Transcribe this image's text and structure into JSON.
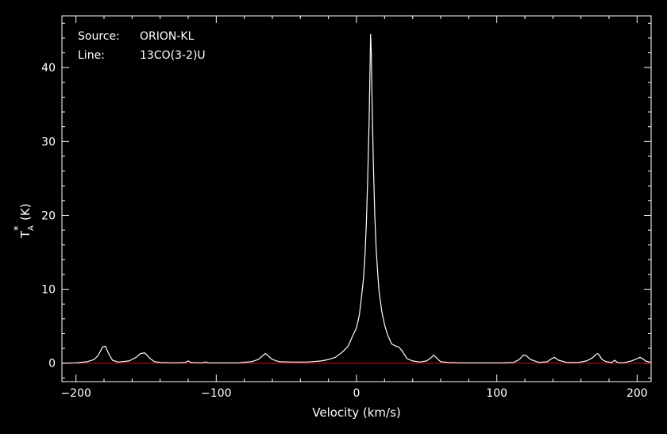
{
  "colors": {
    "background": "#000000",
    "foreground": "#ffffff",
    "baseline": "#d01010"
  },
  "annotations": {
    "source_label": "Source:",
    "source_value": "ORION-KL",
    "line_label": "Line:",
    "line_value": "13CO(3-2)U"
  },
  "chart_data": {
    "type": "line",
    "title": "",
    "xlabel": "Velocity (km/s)",
    "ylabel_main": "T",
    "ylabel_sub": "A",
    "ylabel_sup": "*",
    "ylabel_unit": "(K)",
    "xlim": [
      -210,
      210
    ],
    "ylim": [
      -2.5,
      47
    ],
    "xticks": [
      -200,
      -100,
      0,
      100,
      200
    ],
    "xtick_labels": [
      "−200",
      "−100",
      "0",
      "100",
      "200"
    ],
    "yticks": [
      0,
      10,
      20,
      30,
      40
    ],
    "ytick_labels": [
      "0",
      "10",
      "20",
      "30",
      "40"
    ],
    "x_minor_step": 20,
    "y_minor_step": 2,
    "grid": false,
    "baseline": 0,
    "series": [
      {
        "x": [
          -210,
          -200,
          -192,
          -187,
          -184,
          -181,
          -179,
          -177,
          -174,
          -170,
          -162,
          -157,
          -154,
          -151,
          -149,
          -147,
          -144,
          -140,
          -130,
          -122,
          -120,
          -118,
          -110,
          -108,
          -105,
          -95,
          -85,
          -75,
          -70,
          -67,
          -65,
          -63,
          -60,
          -55,
          -45,
          -35,
          -25,
          -20,
          -15,
          -10,
          -6,
          -3,
          0,
          2,
          3,
          5,
          6,
          7,
          8,
          9,
          9.5,
          10,
          10.5,
          11,
          12,
          13,
          14,
          15,
          16,
          18,
          20,
          22,
          25,
          28,
          30,
          32,
          34,
          36,
          40,
          45,
          50,
          53,
          55,
          57,
          60,
          65,
          75,
          85,
          95,
          105,
          112,
          116,
          119,
          121,
          124,
          130,
          136,
          139,
          141,
          144,
          150,
          158,
          164,
          168,
          171,
          172,
          173,
          175,
          178,
          182,
          184,
          186,
          190,
          196,
          200,
          202,
          204,
          206,
          210
        ],
        "y": [
          0.0,
          0.05,
          0.2,
          0.5,
          1.1,
          2.2,
          2.3,
          1.4,
          0.4,
          0.15,
          0.3,
          0.8,
          1.3,
          1.4,
          1.0,
          0.6,
          0.2,
          0.1,
          0.05,
          0.1,
          0.3,
          0.1,
          0.05,
          0.15,
          0.05,
          0.05,
          0.05,
          0.2,
          0.5,
          1.0,
          1.3,
          1.0,
          0.5,
          0.2,
          0.15,
          0.15,
          0.3,
          0.5,
          0.8,
          1.5,
          2.3,
          3.6,
          4.8,
          6.5,
          8.0,
          11.5,
          14.5,
          19.0,
          25.0,
          33.0,
          38.5,
          44.5,
          42.0,
          36.5,
          27.0,
          20.0,
          15.5,
          12.5,
          9.8,
          7.0,
          5.2,
          3.9,
          2.6,
          2.3,
          2.2,
          1.8,
          1.2,
          0.6,
          0.3,
          0.15,
          0.3,
          0.7,
          1.1,
          0.7,
          0.2,
          0.1,
          0.05,
          0.05,
          0.05,
          0.05,
          0.1,
          0.5,
          1.1,
          1.0,
          0.5,
          0.1,
          0.2,
          0.6,
          0.8,
          0.4,
          0.1,
          0.1,
          0.3,
          0.7,
          1.2,
          1.3,
          1.1,
          0.5,
          0.2,
          0.1,
          0.4,
          0.1,
          0.05,
          0.3,
          0.6,
          0.8,
          0.6,
          0.3,
          0.1
        ]
      }
    ]
  }
}
